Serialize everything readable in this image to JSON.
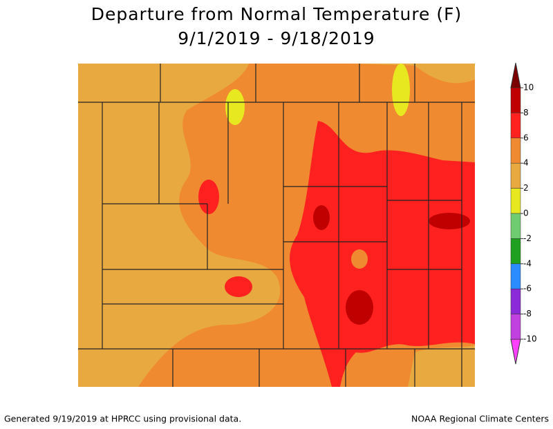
{
  "title": [
    "Departure from Normal Temperature (F)",
    "9/1/2019 - 9/18/2019"
  ],
  "legend": {
    "ticks": [
      10,
      8,
      6,
      4,
      2,
      0,
      -2,
      -4,
      -6,
      -8,
      -10
    ],
    "colors": [
      "#7a0000",
      "#c00000",
      "#ff2020",
      "#f08a30",
      "#e8aa40",
      "#e8e820",
      "#70cc70",
      "#20a020",
      "#2a8cff",
      "#8a2ad8",
      "#c040e0",
      "#ff40ff"
    ]
  },
  "footer": {
    "left": "Generated 9/19/2019 at HPRCC using provisional data.",
    "right": "NOAA Regional Climate Centers"
  }
}
